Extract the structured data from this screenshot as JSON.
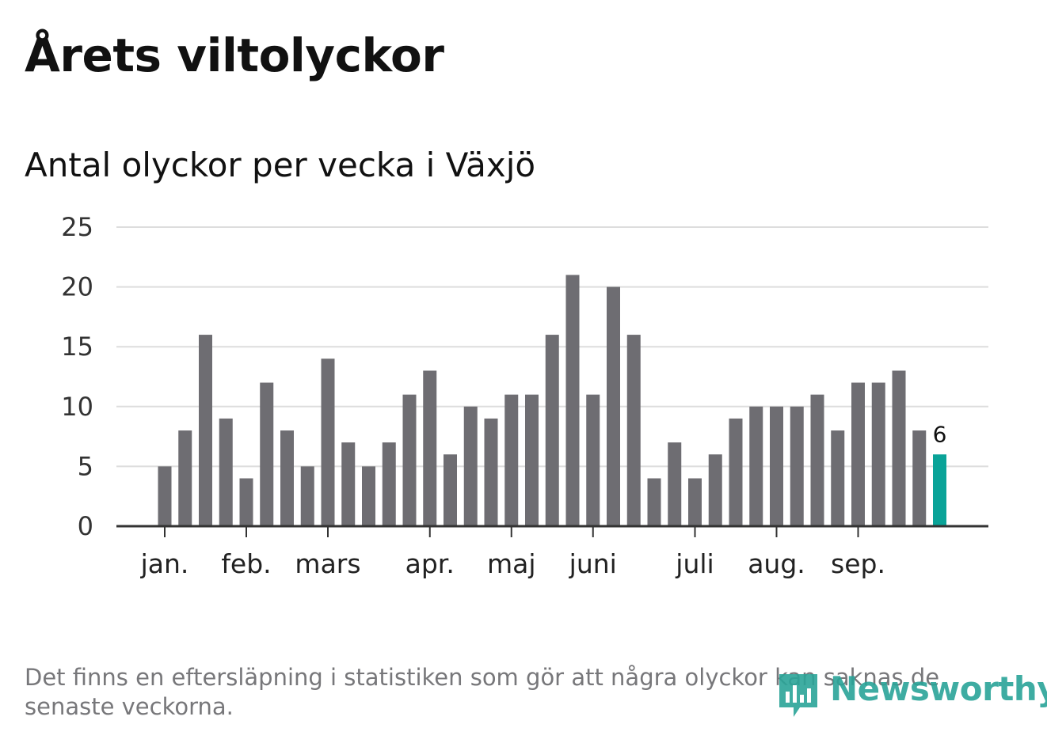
{
  "title": "Årets viltolyckor",
  "subtitle": "Antal olyckor per vecka i Växjö",
  "footnote": "Det finns en eftersläpning i statistiken som gör att några olyckor kan saknas de senaste veckorna.",
  "brand": {
    "name": "Newsworthy",
    "color": "#2aa498"
  },
  "colors": {
    "bar": "#6e6d72",
    "highlight": "#0aa398",
    "grid": "#dddddd",
    "axis": "#333333"
  },
  "chart_data": {
    "type": "bar",
    "title": "Antal olyckor per vecka i Växjö",
    "xlabel": "",
    "ylabel": "",
    "ylim": [
      0,
      25
    ],
    "yticks": [
      0,
      5,
      10,
      15,
      20,
      25
    ],
    "grid": true,
    "values": [
      5,
      8,
      16,
      9,
      4,
      12,
      8,
      5,
      14,
      7,
      5,
      7,
      11,
      13,
      6,
      10,
      9,
      11,
      11,
      16,
      21,
      11,
      20,
      16,
      4,
      7,
      4,
      6,
      9,
      10,
      10,
      10,
      11,
      8,
      12,
      12,
      13,
      8,
      6
    ],
    "highlight_index": 38,
    "highlight_label": "6",
    "month_labels": [
      {
        "label": "jan.",
        "week": 0
      },
      {
        "label": "feb.",
        "week": 4
      },
      {
        "label": "mars",
        "week": 8
      },
      {
        "label": "apr.",
        "week": 13
      },
      {
        "label": "maj",
        "week": 17
      },
      {
        "label": "juni",
        "week": 21
      },
      {
        "label": "juli",
        "week": 26
      },
      {
        "label": "aug.",
        "week": 30
      },
      {
        "label": "sep.",
        "week": 34
      }
    ]
  }
}
